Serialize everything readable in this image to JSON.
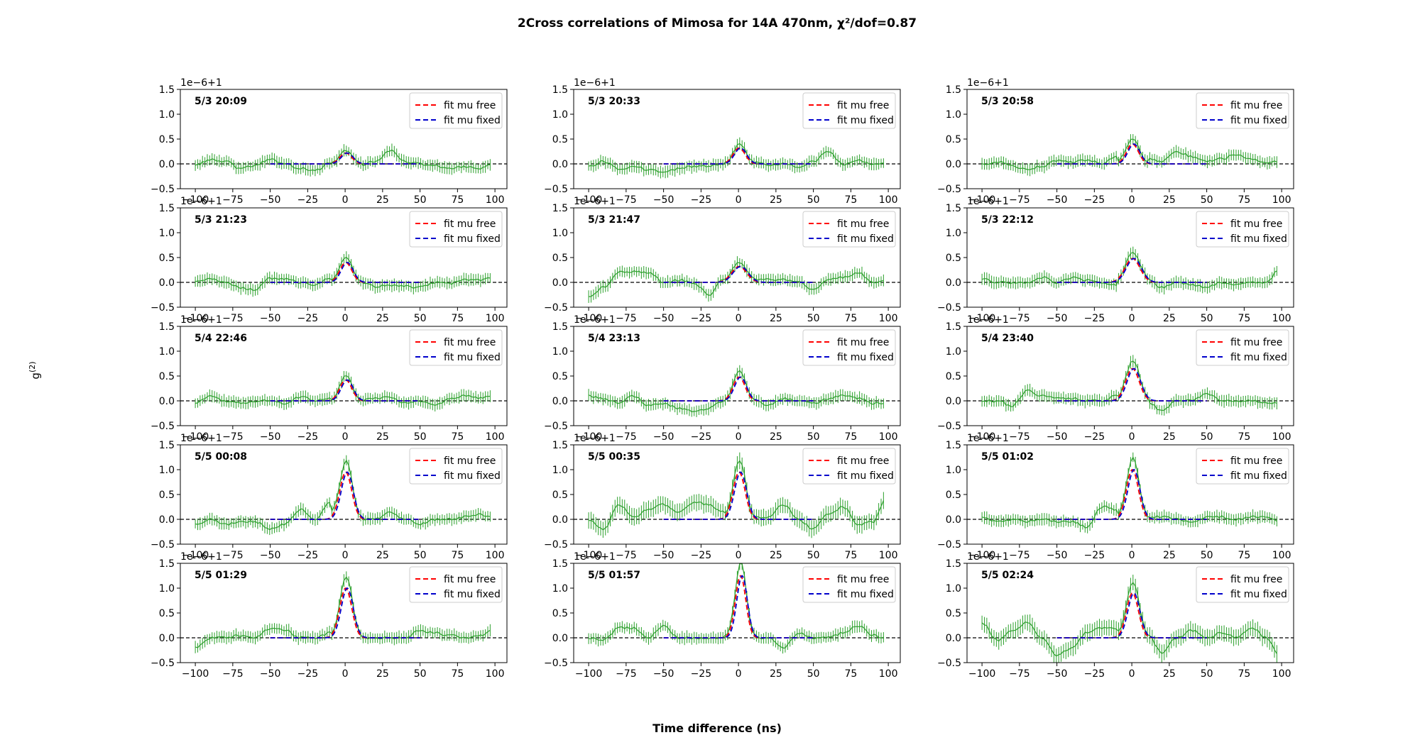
{
  "figure": {
    "title": "2Cross correlations of Mimosa for 14A 470nm, χ²/dof=0.87",
    "xlabel": "Time difference (ns)",
    "ylabel": "g(2)"
  },
  "chart_data": {
    "type": "line",
    "rows": 5,
    "cols": 3,
    "xlim": [
      -110,
      108
    ],
    "ylim": [
      -0.5,
      1.5
    ],
    "xticks": [
      -100,
      -75,
      -50,
      -25,
      0,
      25,
      50,
      75,
      100
    ],
    "yticks": [
      -0.5,
      0.0,
      0.5,
      1.0,
      1.5
    ],
    "xtick_labels": [
      "−100",
      "−75",
      "−50",
      "−25",
      "0",
      "25",
      "50",
      "75",
      "100"
    ],
    "ytick_labels": [
      "−0.5",
      "0.0",
      "0.5",
      "1.0",
      "1.5"
    ],
    "y_offset_label": "1e−6+1",
    "legend": {
      "placement": "top-right",
      "entries": [
        "fit mu free",
        "fit mu fixed"
      ]
    },
    "colors": {
      "data": "#2ca02c",
      "fit_free": "#ff0000",
      "fit_fixed": "#0000cc",
      "baseline": "#000000"
    },
    "data_x_range": [
      -100,
      98
    ],
    "data_step_ns": 1.6,
    "fit_range": [
      -50,
      50
    ],
    "panels": [
      {
        "label": "5/3 20:09",
        "peak_center": 1.0,
        "peak_amplitude": 0.22,
        "peak_sigma": 4.0,
        "series": [
          {
            "name": "data",
            "x": [
              -100,
              -90,
              -80,
              -70,
              -60,
              -50,
              -40,
              -30,
              -20,
              -10,
              0,
              10,
              20,
              30,
              40,
              50,
              60,
              70,
              80,
              90,
              98
            ],
            "y": [
              -0.02,
              0.08,
              0.05,
              -0.1,
              -0.03,
              0.1,
              -0.02,
              -0.08,
              -0.13,
              0.01,
              0.22,
              -0.03,
              0.05,
              0.27,
              0.05,
              0.0,
              -0.04,
              -0.1,
              -0.06,
              -0.09,
              0.0
            ]
          }
        ]
      },
      {
        "label": "5/3 20:33",
        "peak_center": 1.0,
        "peak_amplitude": 0.32,
        "peak_sigma": 4.0,
        "series": [
          {
            "name": "data",
            "x": [
              -100,
              -90,
              -80,
              -70,
              -60,
              -50,
              -40,
              -30,
              -20,
              -10,
              0,
              10,
              20,
              30,
              40,
              50,
              60,
              70,
              80,
              90,
              98
            ],
            "y": [
              -0.05,
              0.05,
              -0.1,
              -0.05,
              -0.12,
              -0.18,
              -0.1,
              -0.05,
              -0.04,
              0.0,
              0.32,
              0.05,
              -0.02,
              0.0,
              -0.06,
              0.05,
              0.25,
              -0.02,
              0.08,
              0.0,
              0.03
            ]
          }
        ]
      },
      {
        "label": "5/3 20:58",
        "peak_center": 1.0,
        "peak_amplitude": 0.4,
        "peak_sigma": 4.0,
        "series": [
          {
            "name": "data",
            "x": [
              -100,
              -90,
              -80,
              -70,
              -60,
              -50,
              -40,
              -30,
              -20,
              -10,
              0,
              10,
              20,
              30,
              40,
              50,
              60,
              70,
              80,
              90,
              98
            ],
            "y": [
              -0.02,
              0.05,
              -0.05,
              -0.1,
              -0.05,
              0.06,
              0.03,
              0.08,
              0.0,
              0.15,
              0.45,
              0.1,
              0.05,
              0.25,
              0.15,
              0.05,
              0.1,
              0.2,
              0.1,
              0.0,
              0.05
            ]
          }
        ]
      },
      {
        "label": "5/3 21:23",
        "peak_center": 1.0,
        "peak_amplitude": 0.4,
        "peak_sigma": 4.0,
        "series": [
          {
            "name": "data",
            "x": [
              -100,
              -90,
              -80,
              -70,
              -60,
              -50,
              -40,
              -30,
              -20,
              -10,
              0,
              10,
              20,
              30,
              40,
              50,
              60,
              70,
              80,
              90,
              98
            ],
            "y": [
              0.02,
              0.08,
              0.0,
              -0.1,
              -0.15,
              0.08,
              0.08,
              0.0,
              -0.05,
              0.1,
              0.4,
              0.0,
              -0.08,
              -0.05,
              -0.08,
              -0.1,
              0.0,
              -0.02,
              0.05,
              0.05,
              0.1
            ]
          }
        ]
      },
      {
        "label": "5/3 21:47",
        "peak_center": 1.0,
        "peak_amplitude": 0.32,
        "peak_sigma": 5.0,
        "series": [
          {
            "name": "data",
            "x": [
              -100,
              -90,
              -80,
              -70,
              -60,
              -50,
              -40,
              -30,
              -20,
              -10,
              0,
              10,
              20,
              30,
              40,
              50,
              60,
              70,
              80,
              90,
              98
            ],
            "y": [
              -0.3,
              -0.1,
              0.2,
              0.22,
              0.2,
              0.0,
              0.05,
              0.0,
              -0.25,
              0.05,
              0.35,
              0.05,
              0.05,
              0.05,
              0.0,
              -0.15,
              0.05,
              0.1,
              0.2,
              0.0,
              0.05
            ]
          }
        ]
      },
      {
        "label": "5/3 22:12",
        "peak_center": 1.0,
        "peak_amplitude": 0.48,
        "peak_sigma": 5.0,
        "series": [
          {
            "name": "data",
            "x": [
              -100,
              -90,
              -80,
              -70,
              -60,
              -50,
              -40,
              -30,
              -20,
              -10,
              0,
              10,
              20,
              30,
              40,
              50,
              60,
              70,
              80,
              90,
              98
            ],
            "y": [
              0.08,
              0.0,
              0.0,
              0.0,
              0.1,
              0.0,
              0.1,
              0.05,
              0.0,
              -0.05,
              0.48,
              0.05,
              -0.1,
              0.0,
              -0.05,
              -0.1,
              0.0,
              -0.05,
              0.0,
              0.0,
              0.25
            ]
          }
        ]
      },
      {
        "label": "5/4 22:46",
        "peak_center": 1.0,
        "peak_amplitude": 0.42,
        "peak_sigma": 4.0,
        "series": [
          {
            "name": "data",
            "x": [
              -100,
              -90,
              -80,
              -70,
              -60,
              -50,
              -40,
              -30,
              -20,
              -10,
              0,
              10,
              20,
              30,
              40,
              50,
              60,
              70,
              80,
              90,
              98
            ],
            "y": [
              -0.05,
              0.1,
              0.0,
              -0.05,
              0.0,
              0.0,
              -0.05,
              0.08,
              0.0,
              0.05,
              0.42,
              0.0,
              0.05,
              0.08,
              -0.05,
              0.0,
              -0.1,
              0.05,
              0.1,
              0.05,
              0.1
            ]
          }
        ]
      },
      {
        "label": "5/4 23:13",
        "peak_center": 1.0,
        "peak_amplitude": 0.48,
        "peak_sigma": 4.0,
        "series": [
          {
            "name": "data",
            "x": [
              -100,
              -90,
              -80,
              -70,
              -60,
              -50,
              -40,
              -30,
              -20,
              -10,
              0,
              10,
              20,
              30,
              40,
              50,
              60,
              70,
              80,
              90,
              98
            ],
            "y": [
              0.1,
              0.05,
              -0.05,
              0.1,
              -0.1,
              -0.05,
              -0.15,
              -0.2,
              -0.15,
              0.0,
              0.5,
              0.0,
              -0.1,
              0.05,
              0.0,
              -0.05,
              0.05,
              0.1,
              0.05,
              -0.05,
              -0.05
            ]
          }
        ]
      },
      {
        "label": "5/4 23:40",
        "peak_center": 1.0,
        "peak_amplitude": 0.65,
        "peak_sigma": 4.5,
        "series": [
          {
            "name": "data",
            "x": [
              -100,
              -90,
              -80,
              -70,
              -60,
              -50,
              -40,
              -30,
              -20,
              -10,
              0,
              10,
              20,
              30,
              40,
              50,
              60,
              70,
              80,
              90,
              98
            ],
            "y": [
              0.0,
              0.0,
              -0.1,
              0.2,
              0.1,
              0.05,
              0.05,
              0.0,
              0.0,
              0.1,
              0.68,
              0.0,
              -0.2,
              0.0,
              0.0,
              0.15,
              0.0,
              0.0,
              0.0,
              -0.05,
              -0.05
            ]
          }
        ]
      },
      {
        "label": "5/5 00:08",
        "peak_center": 1.0,
        "peak_amplitude": 0.95,
        "peak_sigma": 4.0,
        "series": [
          {
            "name": "data",
            "x": [
              -100,
              -90,
              -80,
              -70,
              -60,
              -50,
              -40,
              -30,
              -20,
              -10,
              0,
              10,
              20,
              30,
              40,
              50,
              60,
              70,
              80,
              90,
              98
            ],
            "y": [
              -0.1,
              0.0,
              -0.1,
              -0.05,
              -0.05,
              -0.2,
              -0.1,
              0.2,
              0.0,
              0.35,
              0.95,
              0.0,
              0.0,
              0.15,
              0.0,
              -0.1,
              0.0,
              0.0,
              0.05,
              0.1,
              0.05
            ]
          }
        ]
      },
      {
        "label": "5/5 00:35",
        "peak_center": 1.0,
        "peak_amplitude": 0.95,
        "peak_sigma": 4.0,
        "series": [
          {
            "name": "data",
            "x": [
              -100,
              -90,
              -80,
              -70,
              -60,
              -50,
              -40,
              -30,
              -20,
              -10,
              0,
              10,
              20,
              30,
              40,
              50,
              60,
              70,
              80,
              90,
              98
            ],
            "y": [
              0.0,
              -0.2,
              0.3,
              0.05,
              0.2,
              0.3,
              0.15,
              0.35,
              0.3,
              0.15,
              1.0,
              0.05,
              0.05,
              0.3,
              0.0,
              -0.2,
              0.1,
              0.25,
              -0.1,
              -0.05,
              0.4
            ]
          }
        ]
      },
      {
        "label": "5/5 01:02",
        "peak_center": 1.0,
        "peak_amplitude": 1.0,
        "peak_sigma": 4.0,
        "series": [
          {
            "name": "data",
            "x": [
              -100,
              -90,
              -80,
              -70,
              -60,
              -50,
              -40,
              -30,
              -20,
              -10,
              0,
              10,
              20,
              30,
              40,
              50,
              60,
              70,
              80,
              90,
              98
            ],
            "y": [
              0.05,
              -0.05,
              0.0,
              -0.05,
              0.0,
              -0.05,
              -0.05,
              -0.15,
              0.25,
              0.2,
              1.0,
              0.05,
              0.05,
              0.0,
              -0.05,
              0.05,
              0.05,
              0.0,
              0.05,
              0.05,
              -0.05
            ]
          }
        ]
      },
      {
        "label": "5/5 01:29",
        "peak_center": 1.0,
        "peak_amplitude": 1.0,
        "peak_sigma": 4.0,
        "series": [
          {
            "name": "data",
            "x": [
              -100,
              -90,
              -80,
              -70,
              -60,
              -50,
              -40,
              -30,
              -20,
              -10,
              0,
              10,
              20,
              30,
              40,
              50,
              60,
              70,
              80,
              90,
              98
            ],
            "y": [
              -0.2,
              0.0,
              0.0,
              0.05,
              0.0,
              0.2,
              0.15,
              0.0,
              0.0,
              0.1,
              1.0,
              0.0,
              0.0,
              0.0,
              0.0,
              0.15,
              0.1,
              0.05,
              0.0,
              0.05,
              0.15
            ]
          }
        ]
      },
      {
        "label": "5/5 01:57",
        "peak_center": 2.0,
        "peak_amplitude": 1.25,
        "peak_sigma": 3.5,
        "series": [
          {
            "name": "data",
            "x": [
              -100,
              -90,
              -80,
              -70,
              -60,
              -50,
              -40,
              -30,
              -20,
              -10,
              0,
              10,
              20,
              30,
              40,
              50,
              60,
              70,
              80,
              90,
              98
            ],
            "y": [
              0.0,
              -0.05,
              0.2,
              0.2,
              0.0,
              0.25,
              0.0,
              0.0,
              0.0,
              0.0,
              1.25,
              0.0,
              0.0,
              -0.2,
              0.1,
              0.0,
              0.0,
              0.1,
              0.25,
              0.05,
              0.0
            ]
          }
        ]
      },
      {
        "label": "5/5 02:24",
        "peak_center": 1.0,
        "peak_amplitude": 0.9,
        "peak_sigma": 4.0,
        "series": [
          {
            "name": "data",
            "x": [
              -100,
              -90,
              -80,
              -70,
              -60,
              -50,
              -40,
              -30,
              -20,
              -10,
              0,
              10,
              20,
              30,
              40,
              50,
              60,
              70,
              80,
              90,
              98
            ],
            "y": [
              0.3,
              -0.05,
              0.15,
              0.3,
              0.0,
              -0.35,
              -0.2,
              0.1,
              0.2,
              0.2,
              0.95,
              0.1,
              -0.3,
              0.0,
              0.15,
              0.0,
              0.1,
              0.0,
              0.2,
              0.0,
              -0.35
            ]
          }
        ]
      }
    ]
  }
}
